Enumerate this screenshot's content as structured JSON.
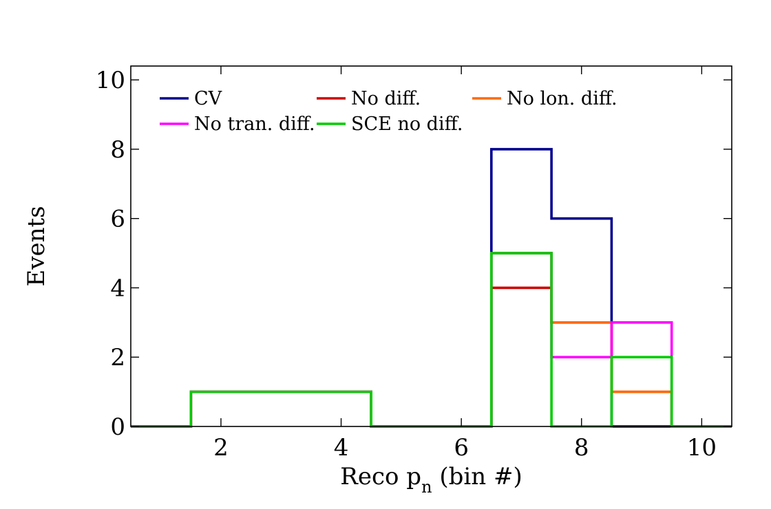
{
  "chart_data": {
    "type": "step",
    "xlabel": {
      "main": "Reco p",
      "sub": "n",
      "suffix": " (bin #)"
    },
    "ylabel": "Events",
    "xlim": [
      0.5,
      10.5
    ],
    "ylim": [
      0,
      10.4
    ],
    "xticks": [
      2,
      4,
      6,
      8,
      10
    ],
    "yticks": [
      0,
      2,
      4,
      6,
      8,
      10
    ],
    "bins": [
      1,
      2,
      3,
      4,
      5,
      6,
      7,
      8,
      9,
      10
    ],
    "legend_position": "top",
    "grid": false,
    "series": [
      {
        "name": "CV",
        "color": "#00008f",
        "values": [
          0,
          1,
          1,
          1,
          0,
          0,
          8,
          6,
          0,
          0
        ]
      },
      {
        "name": "No diff.",
        "color": "#cc0000",
        "values": [
          0,
          1,
          1,
          1,
          0,
          0,
          4,
          3,
          1,
          0
        ]
      },
      {
        "name": "No lon. diff.",
        "color": "#ff6a00",
        "values": [
          0,
          1,
          1,
          1,
          0,
          0,
          5,
          3,
          1,
          0
        ]
      },
      {
        "name": "No tran. diff.",
        "color": "#ff00ff",
        "values": [
          0,
          1,
          1,
          1,
          0,
          0,
          5,
          2,
          3,
          0
        ]
      },
      {
        "name": "SCE no diff.",
        "color": "#00cc00",
        "values": [
          0,
          1,
          1,
          1,
          0,
          0,
          5,
          0,
          2,
          0
        ]
      }
    ]
  }
}
